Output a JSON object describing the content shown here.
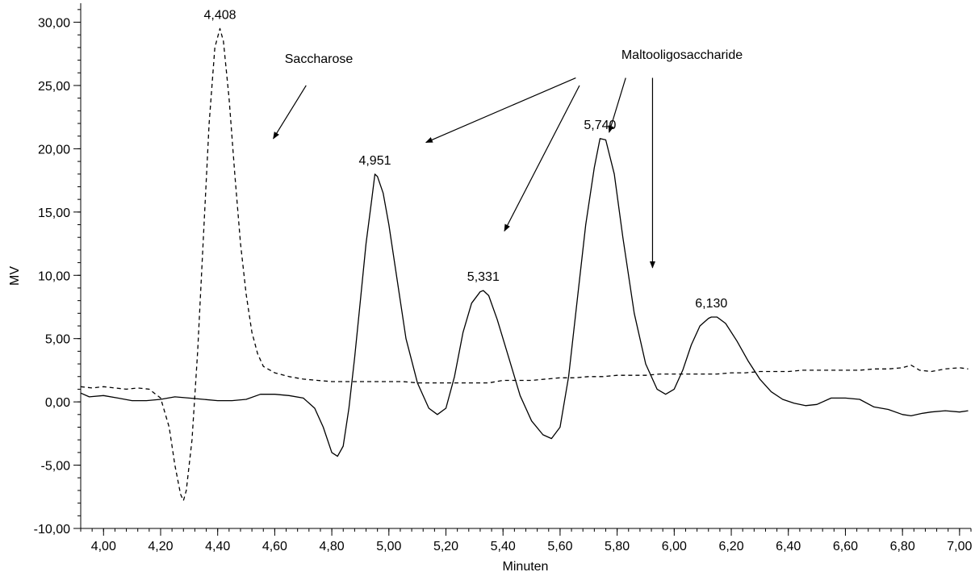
{
  "chart_data": {
    "type": "line",
    "title": "",
    "xlabel": "Minuten",
    "ylabel": "MV",
    "xlim": [
      3.92,
      7.04
    ],
    "ylim": [
      -10.0,
      31.5
    ],
    "grid": false,
    "x_ticks": [
      4.0,
      4.2,
      4.4,
      4.6,
      4.8,
      5.0,
      5.2,
      5.4,
      5.6,
      5.8,
      6.0,
      6.2,
      6.4,
      6.6,
      6.8,
      7.0
    ],
    "x_tick_labels": [
      "4,00",
      "4,20",
      "4,40",
      "4,60",
      "4,80",
      "5,00",
      "5,20",
      "5,40",
      "5,60",
      "5,80",
      "6,00",
      "6,20",
      "6,40",
      "6,60",
      "6,80",
      "7,00"
    ],
    "y_ticks": [
      -10,
      -5,
      0,
      5,
      10,
      15,
      20,
      25,
      30
    ],
    "y_tick_labels": [
      "-10,00",
      "-5,00",
      "0,00",
      "5,00",
      "10,00",
      "15,00",
      "20,00",
      "25,00",
      "30,00"
    ],
    "series": [
      {
        "style": "dashed",
        "color": "#000000",
        "points": [
          [
            3.92,
            1.2
          ],
          [
            3.96,
            1.1
          ],
          [
            4.0,
            1.2
          ],
          [
            4.04,
            1.1
          ],
          [
            4.08,
            1.0
          ],
          [
            4.12,
            1.1
          ],
          [
            4.16,
            1.0
          ],
          [
            4.2,
            0.3
          ],
          [
            4.23,
            -2.0
          ],
          [
            4.25,
            -5.0
          ],
          [
            4.27,
            -7.3
          ],
          [
            4.28,
            -7.8
          ],
          [
            4.29,
            -7.0
          ],
          [
            4.31,
            -3.0
          ],
          [
            4.33,
            4.0
          ],
          [
            4.35,
            13.0
          ],
          [
            4.37,
            22.0
          ],
          [
            4.39,
            28.0
          ],
          [
            4.408,
            29.5
          ],
          [
            4.42,
            28.5
          ],
          [
            4.44,
            24.0
          ],
          [
            4.46,
            18.0
          ],
          [
            4.48,
            12.5
          ],
          [
            4.5,
            8.5
          ],
          [
            4.52,
            5.5
          ],
          [
            4.54,
            3.8
          ],
          [
            4.56,
            2.8
          ],
          [
            4.6,
            2.3
          ],
          [
            4.65,
            2.0
          ],
          [
            4.7,
            1.8
          ],
          [
            4.75,
            1.7
          ],
          [
            4.8,
            1.6
          ],
          [
            4.85,
            1.6
          ],
          [
            4.9,
            1.6
          ],
          [
            4.95,
            1.6
          ],
          [
            5.0,
            1.6
          ],
          [
            5.05,
            1.6
          ],
          [
            5.1,
            1.5
          ],
          [
            5.15,
            1.5
          ],
          [
            5.2,
            1.5
          ],
          [
            5.25,
            1.5
          ],
          [
            5.3,
            1.5
          ],
          [
            5.35,
            1.5
          ],
          [
            5.4,
            1.7
          ],
          [
            5.45,
            1.7
          ],
          [
            5.5,
            1.7
          ],
          [
            5.55,
            1.8
          ],
          [
            5.6,
            1.9
          ],
          [
            5.65,
            1.9
          ],
          [
            5.7,
            2.0
          ],
          [
            5.75,
            2.0
          ],
          [
            5.8,
            2.1
          ],
          [
            5.85,
            2.1
          ],
          [
            5.9,
            2.1
          ],
          [
            5.95,
            2.2
          ],
          [
            6.0,
            2.2
          ],
          [
            6.05,
            2.2
          ],
          [
            6.1,
            2.2
          ],
          [
            6.15,
            2.2
          ],
          [
            6.2,
            2.3
          ],
          [
            6.25,
            2.3
          ],
          [
            6.3,
            2.4
          ],
          [
            6.35,
            2.4
          ],
          [
            6.4,
            2.4
          ],
          [
            6.45,
            2.5
          ],
          [
            6.5,
            2.5
          ],
          [
            6.55,
            2.5
          ],
          [
            6.6,
            2.5
          ],
          [
            6.65,
            2.5
          ],
          [
            6.7,
            2.6
          ],
          [
            6.75,
            2.6
          ],
          [
            6.8,
            2.7
          ],
          [
            6.83,
            2.9
          ],
          [
            6.86,
            2.5
          ],
          [
            6.9,
            2.4
          ],
          [
            6.95,
            2.6
          ],
          [
            7.0,
            2.7
          ],
          [
            7.03,
            2.6
          ]
        ]
      },
      {
        "style": "solid",
        "color": "#000000",
        "points": [
          [
            3.92,
            0.7
          ],
          [
            3.95,
            0.4
          ],
          [
            4.0,
            0.5
          ],
          [
            4.05,
            0.3
          ],
          [
            4.1,
            0.1
          ],
          [
            4.15,
            0.1
          ],
          [
            4.2,
            0.2
          ],
          [
            4.25,
            0.4
          ],
          [
            4.3,
            0.3
          ],
          [
            4.35,
            0.2
          ],
          [
            4.4,
            0.1
          ],
          [
            4.45,
            0.1
          ],
          [
            4.5,
            0.2
          ],
          [
            4.55,
            0.6
          ],
          [
            4.6,
            0.6
          ],
          [
            4.65,
            0.5
          ],
          [
            4.7,
            0.3
          ],
          [
            4.74,
            -0.5
          ],
          [
            4.77,
            -2.0
          ],
          [
            4.8,
            -4.0
          ],
          [
            4.82,
            -4.3
          ],
          [
            4.84,
            -3.5
          ],
          [
            4.86,
            -0.5
          ],
          [
            4.88,
            3.5
          ],
          [
            4.9,
            8.0
          ],
          [
            4.92,
            12.5
          ],
          [
            4.94,
            16.0
          ],
          [
            4.951,
            18.0
          ],
          [
            4.96,
            17.8
          ],
          [
            4.98,
            16.5
          ],
          [
            5.0,
            14.0
          ],
          [
            5.03,
            9.5
          ],
          [
            5.06,
            5.0
          ],
          [
            5.1,
            1.5
          ],
          [
            5.14,
            -0.5
          ],
          [
            5.17,
            -1.0
          ],
          [
            5.2,
            -0.5
          ],
          [
            5.23,
            2.0
          ],
          [
            5.26,
            5.5
          ],
          [
            5.29,
            7.8
          ],
          [
            5.32,
            8.7
          ],
          [
            5.331,
            8.8
          ],
          [
            5.35,
            8.4
          ],
          [
            5.38,
            6.5
          ],
          [
            5.42,
            3.5
          ],
          [
            5.46,
            0.5
          ],
          [
            5.5,
            -1.5
          ],
          [
            5.54,
            -2.6
          ],
          [
            5.57,
            -2.9
          ],
          [
            5.6,
            -2.0
          ],
          [
            5.63,
            2.0
          ],
          [
            5.66,
            8.0
          ],
          [
            5.69,
            14.0
          ],
          [
            5.72,
            18.5
          ],
          [
            5.74,
            20.8
          ],
          [
            5.76,
            20.7
          ],
          [
            5.79,
            18.0
          ],
          [
            5.82,
            13.0
          ],
          [
            5.86,
            7.0
          ],
          [
            5.9,
            3.0
          ],
          [
            5.94,
            1.0
          ],
          [
            5.97,
            0.6
          ],
          [
            6.0,
            1.0
          ],
          [
            6.03,
            2.5
          ],
          [
            6.06,
            4.5
          ],
          [
            6.09,
            6.0
          ],
          [
            6.12,
            6.6
          ],
          [
            6.13,
            6.7
          ],
          [
            6.15,
            6.7
          ],
          [
            6.18,
            6.2
          ],
          [
            6.22,
            4.8
          ],
          [
            6.26,
            3.2
          ],
          [
            6.3,
            1.8
          ],
          [
            6.34,
            0.8
          ],
          [
            6.38,
            0.2
          ],
          [
            6.42,
            -0.1
          ],
          [
            6.46,
            -0.3
          ],
          [
            6.5,
            -0.2
          ],
          [
            6.55,
            0.3
          ],
          [
            6.6,
            0.3
          ],
          [
            6.65,
            0.2
          ],
          [
            6.7,
            -0.4
          ],
          [
            6.75,
            -0.6
          ],
          [
            6.8,
            -1.0
          ],
          [
            6.83,
            -1.1
          ],
          [
            6.87,
            -0.9
          ],
          [
            6.9,
            -0.8
          ],
          [
            6.95,
            -0.7
          ],
          [
            7.0,
            -0.8
          ],
          [
            7.03,
            -0.7
          ]
        ]
      }
    ],
    "peak_labels": [
      {
        "text": "4,408",
        "x": 4.408,
        "y": 29.5
      },
      {
        "text": "4,951",
        "x": 4.951,
        "y": 18.0
      },
      {
        "text": "5,331",
        "x": 5.331,
        "y": 8.8
      },
      {
        "text": "5,740",
        "x": 5.74,
        "y": 20.8
      },
      {
        "text": "6,130",
        "x": 6.13,
        "y": 6.7
      }
    ],
    "annotations": [
      {
        "name": "saccharose",
        "text": "Saccharose",
        "arrows": [
          {
            "from": [
              4.71,
              25.0
            ],
            "to": [
              4.595,
              20.8
            ]
          }
        ]
      },
      {
        "name": "maltooligosaccharide",
        "text": "Maltooligosaccharide",
        "arrows": [
          {
            "from": [
              5.655,
              25.6
            ],
            "to": [
              5.13,
              20.5
            ]
          },
          {
            "from": [
              5.668,
              25.0
            ],
            "to": [
              5.405,
              13.5
            ]
          },
          {
            "from": [
              5.83,
              25.6
            ],
            "to": [
              5.772,
              21.3
            ]
          },
          {
            "from": [
              5.924,
              25.6
            ],
            "to": [
              5.924,
              10.6
            ]
          }
        ]
      }
    ]
  }
}
